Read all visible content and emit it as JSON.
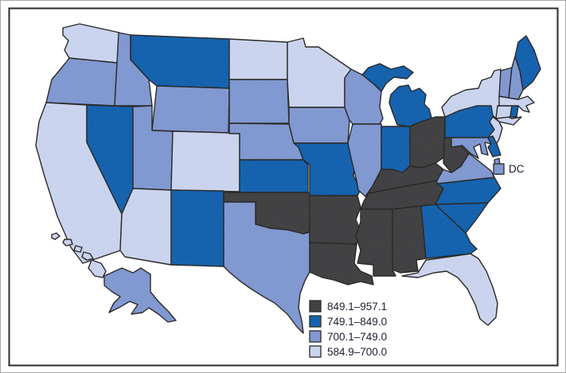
{
  "figure": {
    "stroke_color": "#2b2a29",
    "frame_color": "#2a2a28",
    "background": "#ffffff",
    "text_color": "#1b2030",
    "palette": {
      "cat4": {
        "base": "#3f3f41",
        "dot": "#5a5a5d"
      },
      "cat3": {
        "base": "#115fac",
        "dot": "#3d7ec2"
      },
      "cat2": {
        "base": "#7e96cf",
        "dot": "#9db1de"
      },
      "cat1": {
        "base": "#ccd5ee",
        "dot": "#bdc9e9"
      }
    },
    "legend": {
      "items": [
        {
          "label": "849.1–957.1",
          "key": "cat4"
        },
        {
          "label": "749.1–849.0",
          "key": "cat3"
        },
        {
          "label": "700.1–749.0",
          "key": "cat2"
        },
        {
          "label": "584.9–700.0",
          "key": "cat1"
        }
      ],
      "dc": {
        "label": "DC",
        "key": "cat2"
      }
    }
  },
  "chart_data": {
    "type": "choropleth",
    "region": "United States",
    "title": "",
    "legend_ranges": [
      "849.1–957.1",
      "749.1–849.0",
      "700.1–749.0",
      "584.9–700.0"
    ],
    "range_keys": {
      "849.1–957.1": "cat4",
      "749.1–849.0": "cat3",
      "700.1–749.0": "cat2",
      "584.9–700.0": "cat1"
    },
    "states": [
      {
        "abbr": "WA",
        "range": "584.9–700.0"
      },
      {
        "abbr": "OR",
        "range": "700.1–749.0"
      },
      {
        "abbr": "CA",
        "range": "584.9–700.0"
      },
      {
        "abbr": "NV",
        "range": "749.1–849.0"
      },
      {
        "abbr": "ID",
        "range": "700.1–749.0"
      },
      {
        "abbr": "MT",
        "range": "749.1–849.0"
      },
      {
        "abbr": "WY",
        "range": "700.1–749.0"
      },
      {
        "abbr": "UT",
        "range": "700.1–749.0"
      },
      {
        "abbr": "CO",
        "range": "584.9–700.0"
      },
      {
        "abbr": "AZ",
        "range": "584.9–700.0"
      },
      {
        "abbr": "NM",
        "range": "749.1–849.0"
      },
      {
        "abbr": "ND",
        "range": "584.9–700.0"
      },
      {
        "abbr": "SD",
        "range": "700.1–749.0"
      },
      {
        "abbr": "NE",
        "range": "700.1–749.0"
      },
      {
        "abbr": "KS",
        "range": "749.1–849.0"
      },
      {
        "abbr": "OK",
        "range": "849.1–957.1"
      },
      {
        "abbr": "TX",
        "range": "700.1–749.0"
      },
      {
        "abbr": "MN",
        "range": "584.9–700.0"
      },
      {
        "abbr": "IA",
        "range": "700.1–749.0"
      },
      {
        "abbr": "MO",
        "range": "749.1–849.0"
      },
      {
        "abbr": "AR",
        "range": "849.1–957.1"
      },
      {
        "abbr": "LA",
        "range": "849.1–957.1"
      },
      {
        "abbr": "WI",
        "range": "700.1–749.0"
      },
      {
        "abbr": "IL",
        "range": "700.1–749.0"
      },
      {
        "abbr": "MI",
        "range": "749.1–849.0"
      },
      {
        "abbr": "IN",
        "range": "749.1–849.0"
      },
      {
        "abbr": "OH",
        "range": "849.1–957.1"
      },
      {
        "abbr": "KY",
        "range": "849.1–957.1"
      },
      {
        "abbr": "TN",
        "range": "849.1–957.1"
      },
      {
        "abbr": "MS",
        "range": "849.1–957.1"
      },
      {
        "abbr": "AL",
        "range": "849.1–957.1"
      },
      {
        "abbr": "GA",
        "range": "749.1–849.0"
      },
      {
        "abbr": "FL",
        "range": "584.9–700.0"
      },
      {
        "abbr": "SC",
        "range": "749.1–849.0"
      },
      {
        "abbr": "NC",
        "range": "749.1–849.0"
      },
      {
        "abbr": "VA",
        "range": "700.1–749.0"
      },
      {
        "abbr": "WV",
        "range": "849.1–957.1"
      },
      {
        "abbr": "MD",
        "range": "700.1–749.0"
      },
      {
        "abbr": "DE",
        "range": "749.1–849.0"
      },
      {
        "abbr": "PA",
        "range": "749.1–849.0"
      },
      {
        "abbr": "NJ",
        "range": "584.9–700.0"
      },
      {
        "abbr": "NY",
        "range": "584.9–700.0"
      },
      {
        "abbr": "CT",
        "range": "584.9–700.0"
      },
      {
        "abbr": "RI",
        "range": "749.1–849.0"
      },
      {
        "abbr": "MA",
        "range": "584.9–700.0"
      },
      {
        "abbr": "VT",
        "range": "700.1–749.0"
      },
      {
        "abbr": "NH",
        "range": "700.1–749.0"
      },
      {
        "abbr": "ME",
        "range": "749.1–849.0"
      },
      {
        "abbr": "AK",
        "range": "700.1–749.0"
      },
      {
        "abbr": "HI",
        "range": "584.9–700.0"
      },
      {
        "abbr": "DC",
        "range": "700.1–749.0"
      }
    ]
  }
}
